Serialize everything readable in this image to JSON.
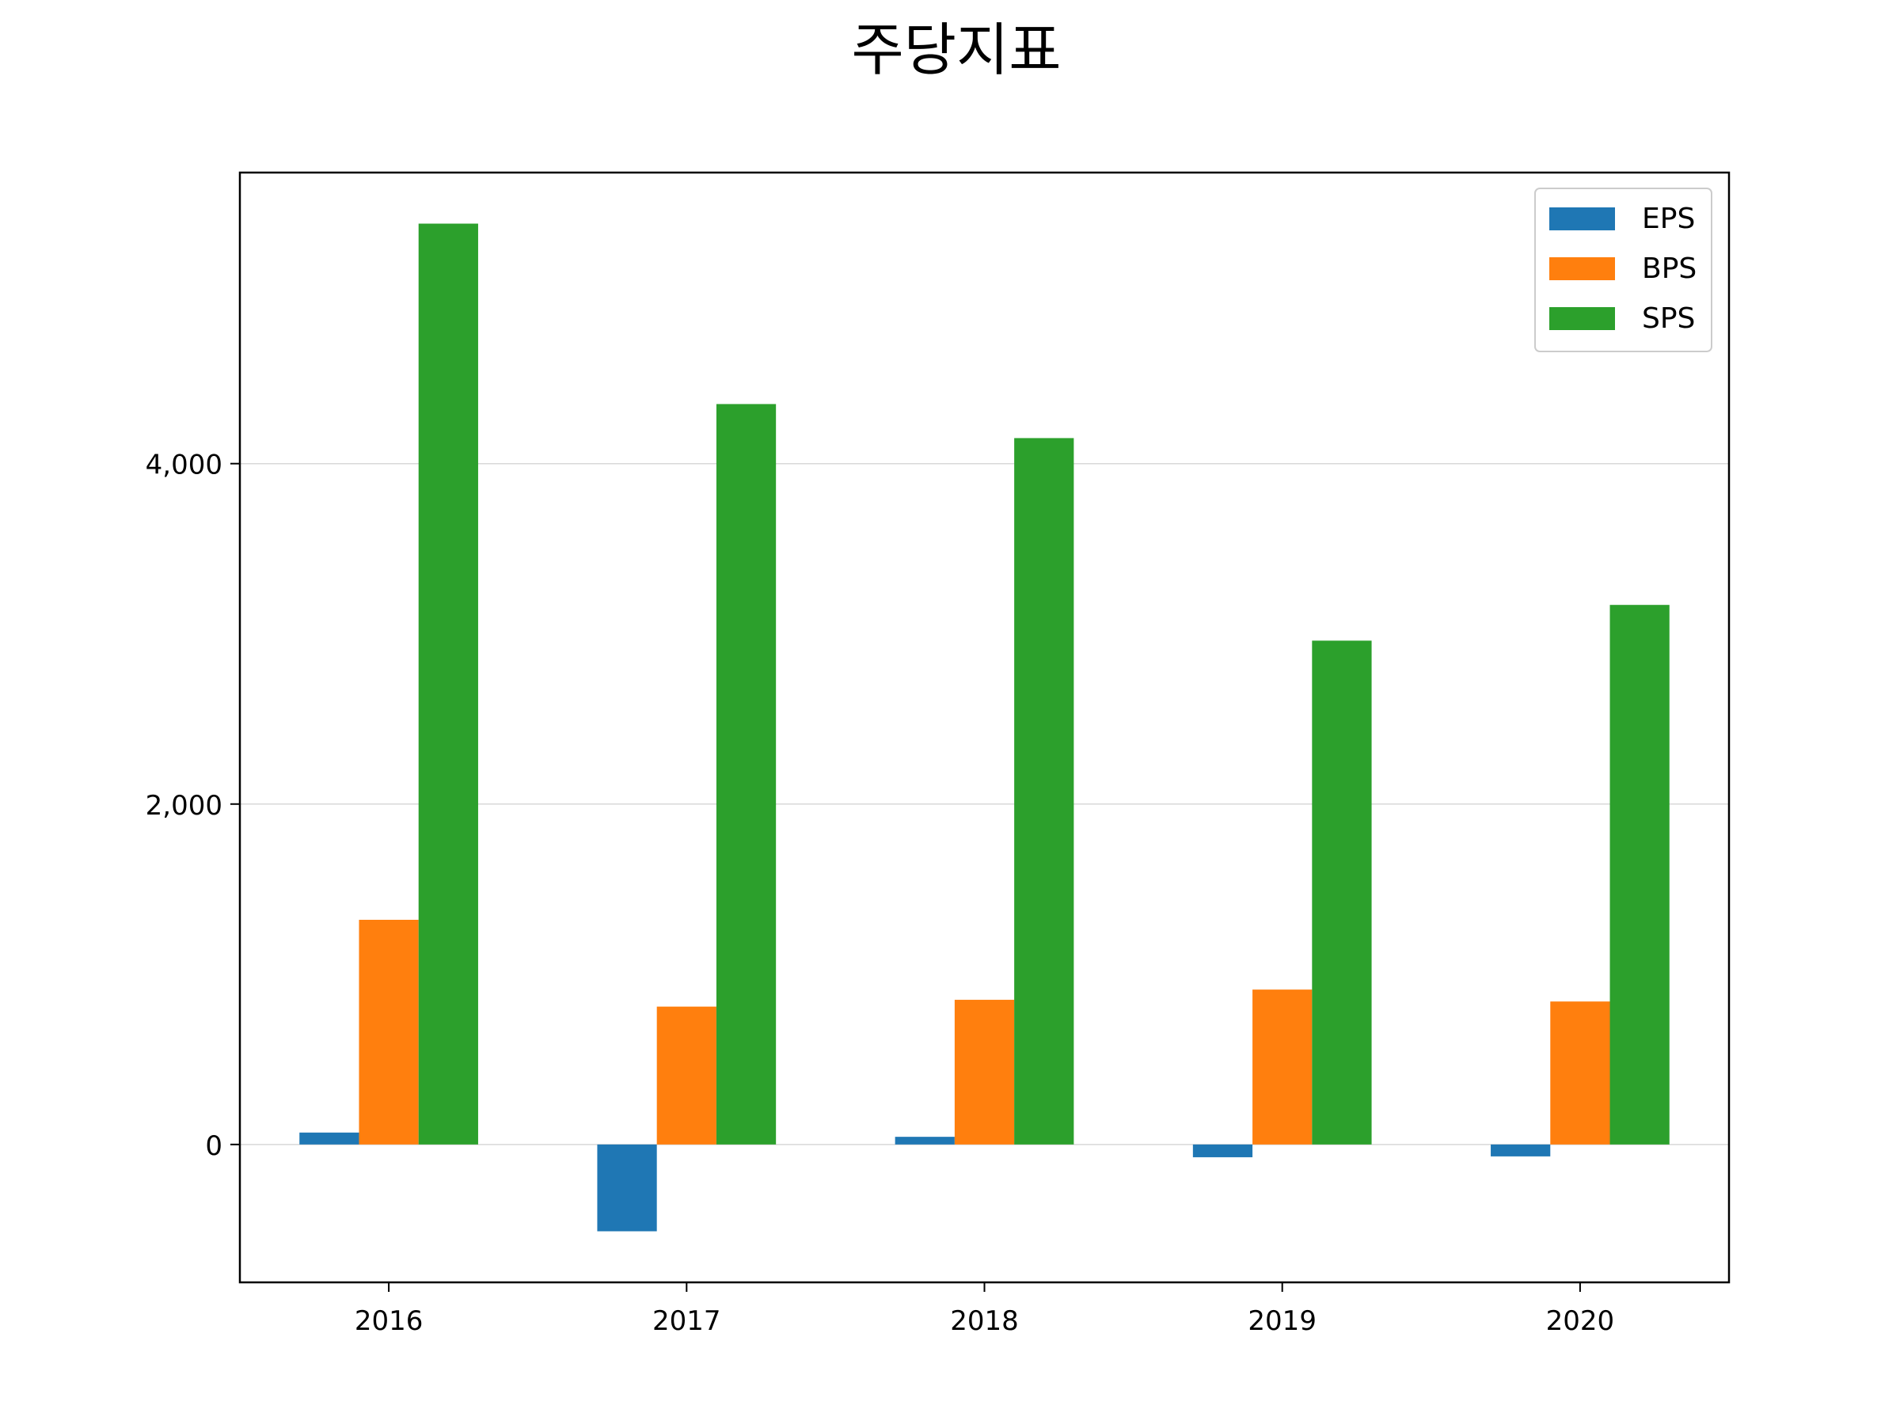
{
  "chart_data": {
    "type": "bar",
    "title": "주당지표",
    "xlabel": "",
    "ylabel": "",
    "categories": [
      "2016",
      "2017",
      "2018",
      "2019",
      "2020"
    ],
    "series": [
      {
        "name": "EPS",
        "color": "#1f77b4",
        "values": [
          70,
          -510,
          45,
          -75,
          -70
        ]
      },
      {
        "name": "BPS",
        "color": "#ff7f0e",
        "values": [
          1320,
          810,
          850,
          910,
          840
        ]
      },
      {
        "name": "SPS",
        "color": "#2ca02c",
        "values": [
          5410,
          4350,
          4150,
          2960,
          3170
        ]
      }
    ],
    "ylim": [
      -810,
      5710
    ],
    "yticks": [
      0,
      2000,
      4000
    ],
    "ytick_labels": [
      "0",
      "2,000",
      "4,000"
    ],
    "grid": "y",
    "legend_position": "top-right"
  }
}
